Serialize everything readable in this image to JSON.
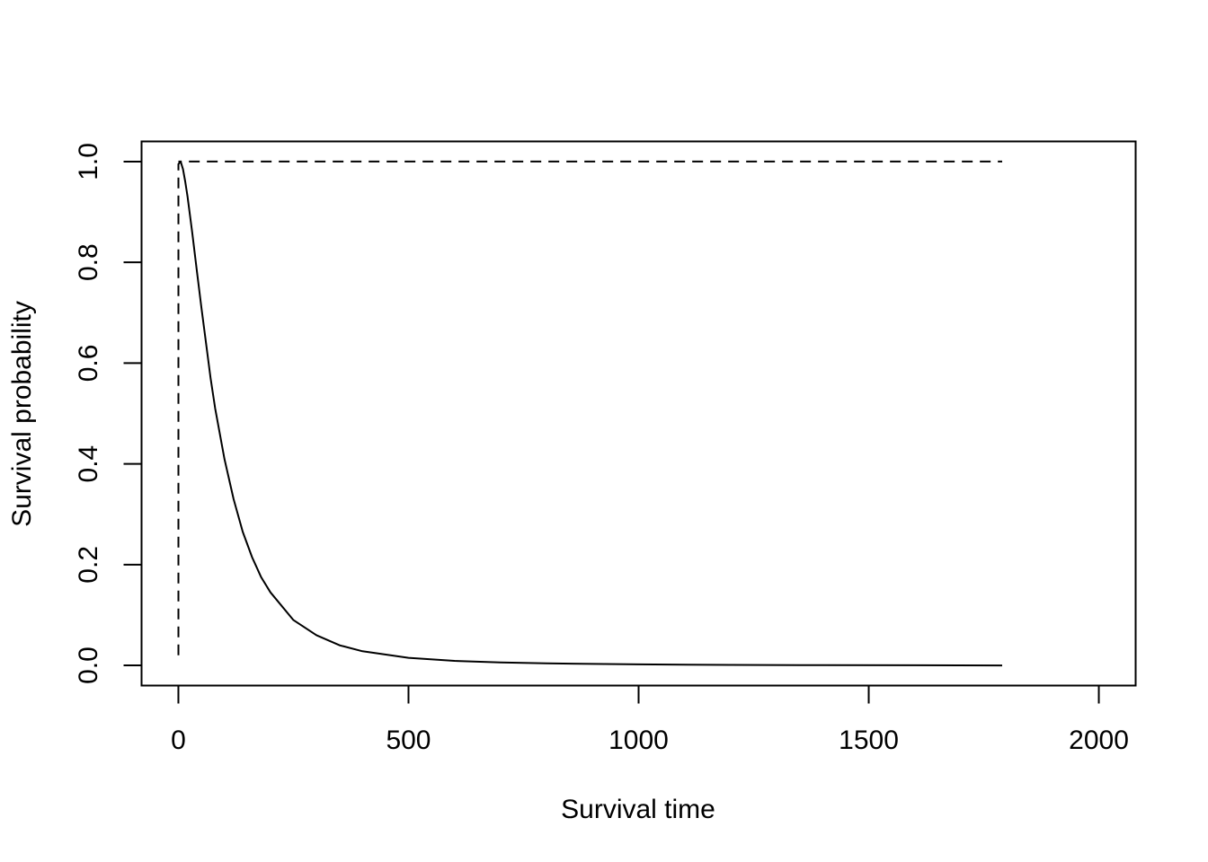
{
  "chart_data": {
    "type": "line",
    "title": "",
    "xlabel": "Survival time",
    "ylabel": "Survival probability",
    "xlim": [
      -80,
      2080
    ],
    "ylim": [
      -0.04,
      1.04
    ],
    "x_ticks": [
      0,
      500,
      1000,
      1500,
      2000
    ],
    "x_tick_labels": [
      "0",
      "500",
      "1000",
      "1500",
      "2000"
    ],
    "y_ticks": [
      0.0,
      0.2,
      0.4,
      0.6,
      0.8,
      1.0
    ],
    "y_tick_labels": [
      "0.0",
      "0.2",
      "0.4",
      "0.6",
      "0.8",
      "1.0"
    ],
    "grid": false,
    "legend": "none",
    "line_color": "#000000",
    "series": [
      {
        "style": "solid",
        "x": [
          0,
          5,
          10,
          15,
          20,
          30,
          40,
          50,
          60,
          70,
          80,
          100,
          120,
          140,
          160,
          180,
          200,
          250,
          300,
          350,
          400,
          500,
          600,
          700,
          800,
          1000,
          1200,
          1400,
          1600,
          1790
        ],
        "y": [
          1.0,
          1.0,
          0.985,
          0.96,
          0.93,
          0.86,
          0.785,
          0.71,
          0.64,
          0.57,
          0.51,
          0.41,
          0.33,
          0.265,
          0.215,
          0.175,
          0.145,
          0.09,
          0.06,
          0.04,
          0.028,
          0.015,
          0.009,
          0.006,
          0.004,
          0.002,
          0.001,
          0.0005,
          0.0002,
          0.0
        ]
      },
      {
        "style": "dashed",
        "x": [
          0,
          0,
          5,
          1790
        ],
        "y": [
          0.02,
          0.995,
          1.0,
          1.0
        ]
      }
    ]
  }
}
